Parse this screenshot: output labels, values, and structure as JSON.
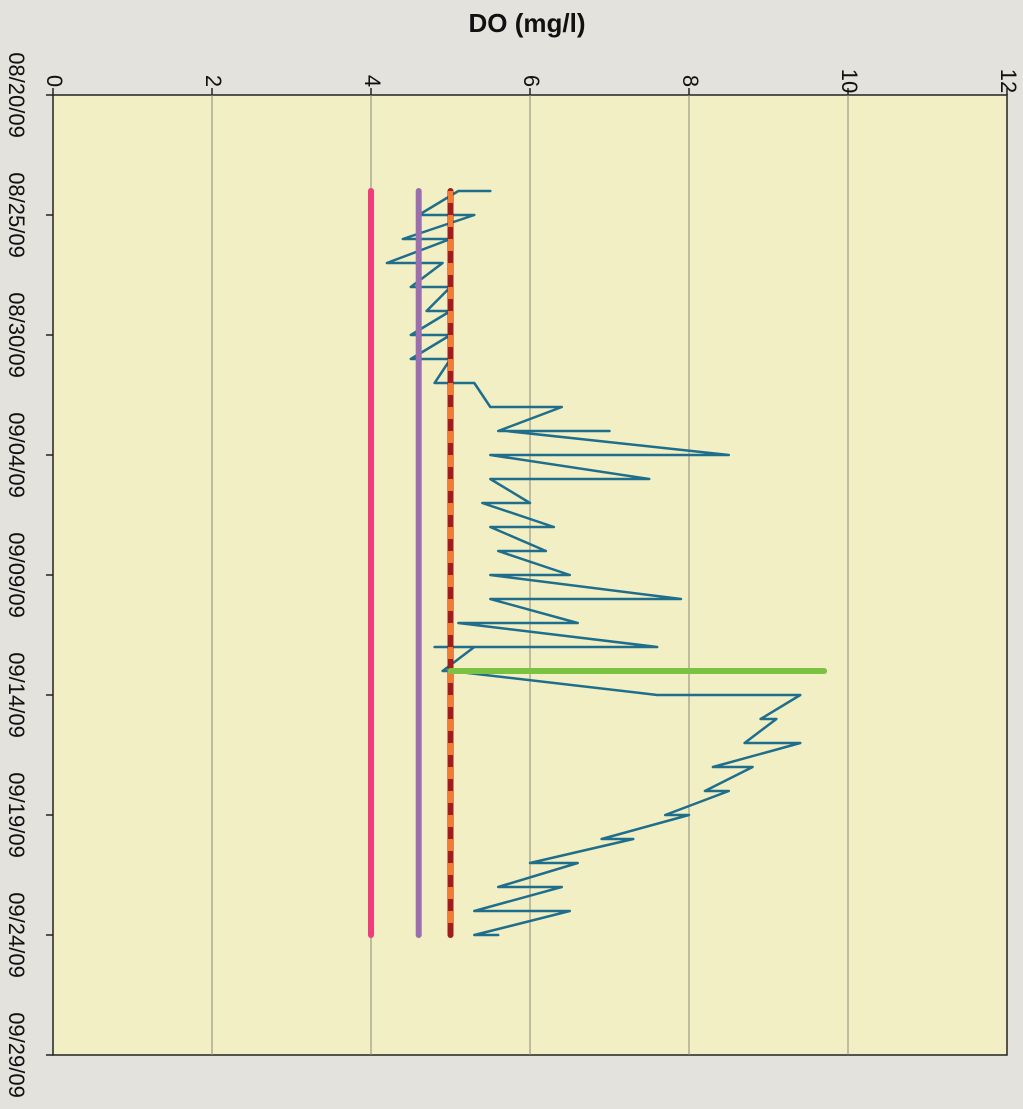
{
  "chart_data": {
    "type": "line",
    "title": "",
    "xlabel": "",
    "ylabel": "DO (mg/l)",
    "ylim": [
      0,
      12
    ],
    "yticks": [
      "0",
      "2",
      "4",
      "6",
      "8",
      "10",
      "12"
    ],
    "xlim": [
      "08/20/09",
      "09/29/09"
    ],
    "xticks": [
      "08/20/09",
      "08/25/09",
      "08/30/09",
      "09/04/09",
      "09/09/09",
      "09/14/09",
      "09/19/09",
      "09/24/09",
      "09/29/09"
    ],
    "grid": true,
    "plot_background": "#f2efc4",
    "orientation": "rotated 90 degrees clockwise",
    "series": [
      {
        "color": "#1f6e8c",
        "style": "solid",
        "points": [
          [
            "08/24/09",
            5.5
          ],
          [
            "08/24/09",
            5.1
          ],
          [
            "08/25/09",
            4.6
          ],
          [
            "08/25/09",
            5.3
          ],
          [
            "08/26/09",
            4.4
          ],
          [
            "08/26/09",
            5.0
          ],
          [
            "08/27/09",
            4.2
          ],
          [
            "08/27/09",
            4.9
          ],
          [
            "08/28/09",
            4.5
          ],
          [
            "08/28/09",
            5.0
          ],
          [
            "08/29/09",
            4.7
          ],
          [
            "08/29/09",
            5.0
          ],
          [
            "08/30/09",
            4.5
          ],
          [
            "08/30/09",
            5.0
          ],
          [
            "08/31/09",
            4.5
          ],
          [
            "08/31/09",
            5.0
          ],
          [
            "09/01/09",
            4.8
          ],
          [
            "09/01/09",
            5.3
          ],
          [
            "09/02/09",
            5.5
          ],
          [
            "09/02/09",
            6.4
          ],
          [
            "09/03/09",
            5.6
          ],
          [
            "09/03/09",
            7.0
          ],
          [
            "09/03/09",
            5.7
          ],
          [
            "09/04/09",
            8.5
          ],
          [
            "09/04/09",
            5.5
          ],
          [
            "09/05/09",
            7.5
          ],
          [
            "09/05/09",
            5.5
          ],
          [
            "09/06/09",
            6.0
          ],
          [
            "09/06/09",
            5.4
          ],
          [
            "09/07/09",
            6.3
          ],
          [
            "09/07/09",
            5.5
          ],
          [
            "09/08/09",
            6.2
          ],
          [
            "09/08/09",
            5.6
          ],
          [
            "09/09/09",
            6.5
          ],
          [
            "09/09/09",
            5.5
          ],
          [
            "09/10/09",
            7.9
          ],
          [
            "09/10/09",
            5.5
          ],
          [
            "09/11/09",
            6.6
          ],
          [
            "09/11/09",
            5.1
          ],
          [
            "09/12/09",
            7.6
          ],
          [
            "09/12/09",
            4.8
          ],
          [
            "09/12/09",
            5.3
          ],
          [
            "09/13/09",
            4.9
          ],
          [
            "09/13/09",
            5.0
          ],
          [
            "09/14/09",
            7.6
          ],
          [
            "09/14/09",
            9.4
          ],
          [
            "09/15/09",
            8.9
          ],
          [
            "09/15/09",
            9.1
          ],
          [
            "09/16/09",
            8.7
          ],
          [
            "09/16/09",
            9.4
          ],
          [
            "09/17/09",
            8.3
          ],
          [
            "09/17/09",
            8.8
          ],
          [
            "09/18/09",
            8.2
          ],
          [
            "09/18/09",
            8.5
          ],
          [
            "09/19/09",
            7.7
          ],
          [
            "09/19/09",
            8.0
          ],
          [
            "09/20/09",
            6.9
          ],
          [
            "09/20/09",
            7.3
          ],
          [
            "09/21/09",
            6.0
          ],
          [
            "09/21/09",
            6.6
          ],
          [
            "09/22/09",
            5.6
          ],
          [
            "09/22/09",
            6.4
          ],
          [
            "09/23/09",
            5.3
          ],
          [
            "09/23/09",
            6.5
          ],
          [
            "09/24/09",
            5.3
          ],
          [
            "09/24/09",
            5.6
          ]
        ]
      },
      {
        "color": "#ee3d79",
        "style": "solid",
        "points": [
          [
            "08/24/09",
            4.0
          ],
          [
            "09/24/09",
            4.0
          ]
        ]
      },
      {
        "color": "#9b6fae",
        "style": "solid",
        "points": [
          [
            "08/24/09",
            4.6
          ],
          [
            "09/24/09",
            4.6
          ]
        ]
      },
      {
        "color": "#a11c1c",
        "dash_color": "#f47c2a",
        "style": "dashed",
        "points": [
          [
            "08/24/09",
            5.0
          ],
          [
            "09/24/09",
            5.0
          ]
        ]
      },
      {
        "color": "#7cc242",
        "style": "solid",
        "points": [
          [
            "09/13/09",
            5.0
          ],
          [
            "09/13/09",
            9.7
          ]
        ]
      }
    ]
  }
}
